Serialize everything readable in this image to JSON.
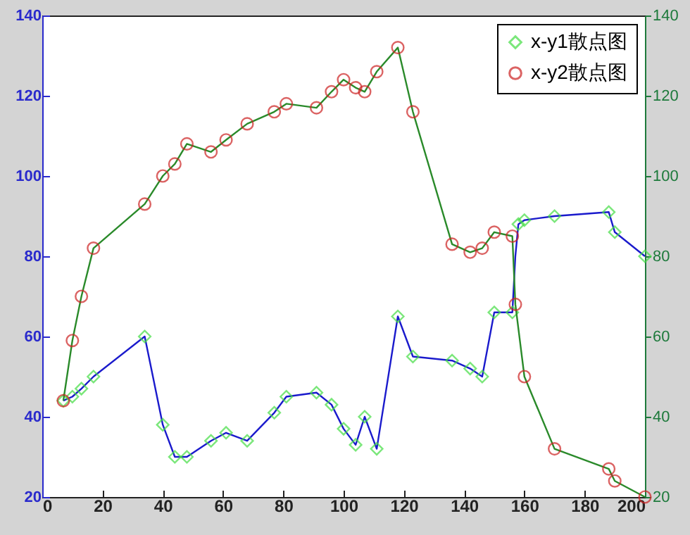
{
  "chart_data": {
    "type": "scatter",
    "xlim": [
      0,
      200
    ],
    "xticks": [
      0,
      20,
      40,
      60,
      80,
      100,
      120,
      140,
      160,
      180,
      200
    ],
    "ylim": [
      20,
      140
    ],
    "yticks": [
      20,
      40,
      60,
      80,
      100,
      120,
      140
    ],
    "y2lim": [
      20,
      140
    ],
    "y2ticks": [
      20,
      40,
      60,
      80,
      100,
      120,
      140
    ],
    "legend": "top right",
    "grid": false,
    "series": [
      {
        "type": "line",
        "color": "#1a1acc",
        "x": [
          7,
          10,
          13,
          17,
          34,
          40,
          44,
          48,
          56,
          61,
          68,
          77,
          81,
          91,
          96,
          100,
          104,
          107,
          111,
          118,
          123,
          136,
          142,
          146,
          150,
          156,
          157,
          158,
          160,
          170,
          188,
          190,
          200
        ],
        "values": [
          44,
          45,
          47,
          50,
          60,
          38,
          30,
          30,
          34,
          36,
          34,
          41,
          45,
          46,
          43,
          37,
          33,
          40,
          32,
          65,
          55,
          54,
          52,
          50,
          66,
          66,
          80,
          88,
          89,
          90,
          91,
          86,
          80
        ]
      },
      {
        "type": "line",
        "color": "#2a8a2a",
        "axis": "y2",
        "x": [
          7,
          10,
          13,
          17,
          34,
          40,
          44,
          48,
          56,
          61,
          68,
          77,
          81,
          91,
          96,
          100,
          104,
          107,
          111,
          118,
          123,
          136,
          142,
          146,
          150,
          156,
          157,
          160,
          170,
          188,
          190,
          200
        ],
        "values": [
          44,
          59,
          70,
          82,
          93,
          100,
          103,
          108,
          106,
          109,
          113,
          116,
          118,
          117,
          121,
          124,
          122,
          121,
          126,
          132,
          116,
          83,
          81,
          82,
          86,
          85,
          68,
          50,
          32,
          27,
          24,
          20
        ]
      },
      {
        "name": "x-y1散点图",
        "color": "#44dd44",
        "marker": "diamond",
        "x": [
          7,
          10,
          13,
          17,
          34,
          40,
          44,
          48,
          56,
          61,
          68,
          77,
          81,
          91,
          96,
          100,
          104,
          107,
          111,
          118,
          123,
          136,
          142,
          146,
          150,
          156,
          158,
          160,
          170,
          188,
          190,
          200
        ],
        "values": [
          44,
          45,
          47,
          50,
          60,
          38,
          30,
          30,
          34,
          36,
          34,
          41,
          45,
          46,
          43,
          37,
          33,
          40,
          32,
          65,
          55,
          54,
          52,
          50,
          66,
          66,
          88,
          89,
          90,
          91,
          86,
          80
        ]
      },
      {
        "name": "x-y2散点图",
        "color": "#cc2222",
        "marker": "circle",
        "axis": "y2",
        "x": [
          7,
          10,
          13,
          17,
          34,
          40,
          44,
          48,
          56,
          61,
          68,
          77,
          81,
          91,
          96,
          100,
          104,
          107,
          111,
          118,
          123,
          136,
          142,
          146,
          150,
          156,
          157,
          160,
          170,
          188,
          190,
          200
        ],
        "values": [
          44,
          59,
          70,
          82,
          93,
          100,
          103,
          108,
          106,
          109,
          113,
          116,
          118,
          117,
          121,
          124,
          122,
          121,
          126,
          132,
          116,
          83,
          81,
          82,
          86,
          85,
          68,
          50,
          32,
          27,
          24,
          20
        ]
      }
    ]
  }
}
